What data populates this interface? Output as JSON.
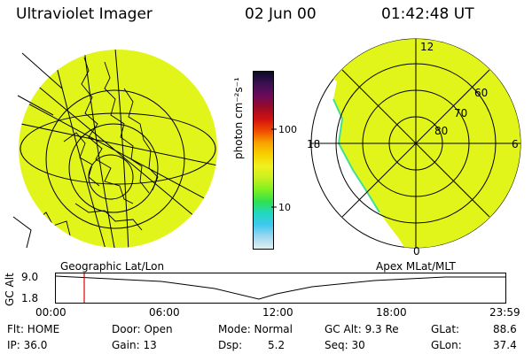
{
  "header": {
    "instrument": "Ultraviolet Imager",
    "date": "02 Jun 00",
    "time": "01:42:48 UT"
  },
  "colorbar": {
    "unit_label": "photon cm⁻²s⁻¹",
    "ticks": [
      "100",
      "10"
    ],
    "colors": [
      "#0a0a2a",
      "#3a1050",
      "#6a0a5a",
      "#9a0a28",
      "#d01010",
      "#f04a00",
      "#f8a000",
      "#f8d000",
      "#f0f020",
      "#c8f020",
      "#80f020",
      "#30e050",
      "#20d8c0",
      "#40c8f0",
      "#a0d8f0",
      "#e0f0f0"
    ]
  },
  "left_map": {
    "label": "Geographic Lat/Lon",
    "fill_color": "#e2f51a"
  },
  "right_map": {
    "label": "Apex MLat/MLT",
    "fill_color": "#e2f51a",
    "mlt_labels": [
      "12",
      "18",
      "6",
      "0"
    ],
    "lat_labels": [
      "60",
      "70",
      "80"
    ]
  },
  "timeline": {
    "axis_label": "GC Alt",
    "y_ticks": [
      "9.0",
      "1.8"
    ],
    "x_ticks": [
      "00:00",
      "06:00",
      "12:00",
      "18:00",
      "23:59"
    ],
    "marker_color": "#e00000"
  },
  "status": {
    "flt": "Flt: HOME",
    "ip": "IP: 36.0",
    "door": "Door: Open",
    "gain": "Gain: 13",
    "mode": "Mode: Normal",
    "dsp": "Dsp:",
    "dsp_val": "5.2",
    "gcalt": "GC Alt: 9.3 Re",
    "seq": "Seq: 30",
    "glat": "GLat:",
    "glat_val": "88.6",
    "glon": "GLon:",
    "glon_val": "37.4"
  }
}
